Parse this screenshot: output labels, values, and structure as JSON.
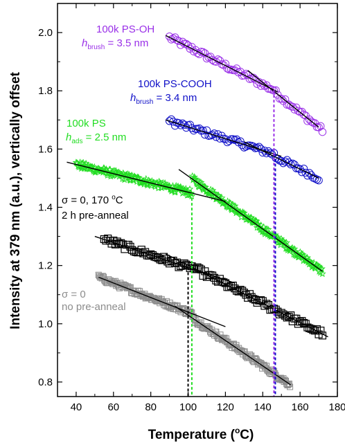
{
  "chart_data": {
    "type": "scatter",
    "xlabel": "Temperature (",
    "xlabel_sup": "o",
    "xlabel_tail": "C)",
    "ylabel": "Intensity at 379 nm (a.u.), vertically offset",
    "xlim": [
      30,
      180
    ],
    "ylim": [
      0.75,
      2.1
    ],
    "x_ticks": [
      "40",
      "60",
      "80",
      "100",
      "120",
      "140",
      "160",
      "180"
    ],
    "y_ticks": [
      "0.8",
      "1.0",
      "1.2",
      "1.4",
      "1.6",
      "1.8",
      "2.0"
    ],
    "colors": {
      "purple": "#9a30e8",
      "blue": "#1010c8",
      "green": "#22dd22",
      "black": "#000000",
      "gray": "#8c8c8c"
    },
    "series": [
      {
        "name": "100k PS-OH",
        "marker": "circle",
        "color": "#9a30e8",
        "x_range": [
          90,
          172
        ],
        "fit_segments": [
          {
            "x": [
              88,
              148
            ],
            "y": [
              1.99,
              1.796
            ]
          },
          {
            "x": [
              132,
              170
            ],
            "y": [
              1.87,
              1.675
            ]
          }
        ],
        "tg": 146
      },
      {
        "name": "100k PS-COOH",
        "marker": "circle",
        "color": "#1010c8",
        "x_range": [
          90,
          170
        ],
        "fit_segments": [
          {
            "x": [
              88,
              150
            ],
            "y": [
              1.7,
              1.575
            ]
          },
          {
            "x": [
              130,
              170
            ],
            "y": [
              1.625,
              1.5
            ]
          }
        ],
        "tg": 146
      },
      {
        "name": "100k PS",
        "marker": "star",
        "color": "#22dd22",
        "x_range": [
          40,
          172
        ],
        "fit_segments": [
          {
            "x": [
              35,
              120
            ],
            "y": [
              1.555,
              1.42
            ]
          },
          {
            "x": [
              95,
              172
            ],
            "y": [
              1.53,
              1.18
            ]
          }
        ],
        "tg": 102
      },
      {
        "name": "σ = 0, 170 °C 2 h pre-anneal",
        "marker": "square",
        "color": "#000000",
        "x_range": [
          55,
          172
        ],
        "fit_segments": [
          {
            "x": [
              50,
              125
            ],
            "y": [
              1.3,
              1.14
            ]
          },
          {
            "x": [
              88,
              175
            ],
            "y": [
              1.24,
              0.955
            ]
          }
        ],
        "tg": 100
      },
      {
        "name": "σ = 0 no pre-anneal",
        "marker": "square",
        "color": "#8c8c8c",
        "x_range": [
          52,
          155
        ],
        "fit_segments": [
          {
            "x": [
              52,
              120
            ],
            "y": [
              1.16,
              0.99
            ]
          },
          {
            "x": [
              93,
              155
            ],
            "y": [
              1.06,
              0.79
            ]
          }
        ],
        "tg": 102
      }
    ],
    "annotations": {
      "ps_oh_name": "100k PS-OH",
      "ps_oh_h": "h",
      "ps_oh_sub": "brush",
      "ps_oh_val": " = 3.5 nm",
      "ps_cooh_name": "100k PS-COOH",
      "ps_cooh_h": "h",
      "ps_cooh_sub": "brush",
      "ps_cooh_val": " = 3.4 nm",
      "ps_name": "100k PS",
      "ps_h": "h",
      "ps_sub": "ads",
      "ps_val": " = 2.5 nm",
      "pre_line1": "σ = 0, 170 ",
      "pre_line1_sup": "o",
      "pre_line1_tail": "C",
      "pre_line2": "2 h pre-anneal",
      "no_line1": "σ = 0",
      "no_line2": "no pre-anneal"
    }
  }
}
